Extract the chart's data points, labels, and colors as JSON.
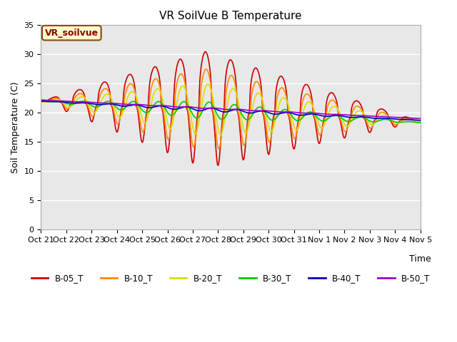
{
  "title": "VR SoilVue B Temperature",
  "ylabel": "Soil Temperature (C)",
  "xlabel": "Time",
  "ylim": [
    0,
    35
  ],
  "yticks": [
    0,
    5,
    10,
    15,
    20,
    25,
    30,
    35
  ],
  "xtick_labels": [
    "Oct 21",
    "Oct 22",
    "Oct 23",
    "Oct 24",
    "Oct 25",
    "Oct 26",
    "Oct 27",
    "Oct 28",
    "Oct 29",
    "Oct 30",
    "Oct 31",
    "Nov 1",
    "Nov 2",
    "Nov 3",
    "Nov 4",
    "Nov 5"
  ],
  "annotation_text": "VR_soilvue",
  "annotation_box_color": "#ffffcc",
  "annotation_border_color": "#8B4513",
  "annotation_text_color": "#8B0000",
  "lines": {
    "B-05_T": {
      "color": "#cc0000",
      "lw": 1.2
    },
    "B-10_T": {
      "color": "#ff8800",
      "lw": 1.2
    },
    "B-20_T": {
      "color": "#dddd00",
      "lw": 1.2
    },
    "B-30_T": {
      "color": "#00cc00",
      "lw": 1.2
    },
    "B-40_T": {
      "color": "#0000bb",
      "lw": 1.2
    },
    "B-50_T": {
      "color": "#9900cc",
      "lw": 1.2
    }
  },
  "bg_color": "#e8e8e8",
  "fig_bg_color": "#ffffff",
  "grid_color": "#ffffff",
  "num_days": 15,
  "points_per_day": 48
}
